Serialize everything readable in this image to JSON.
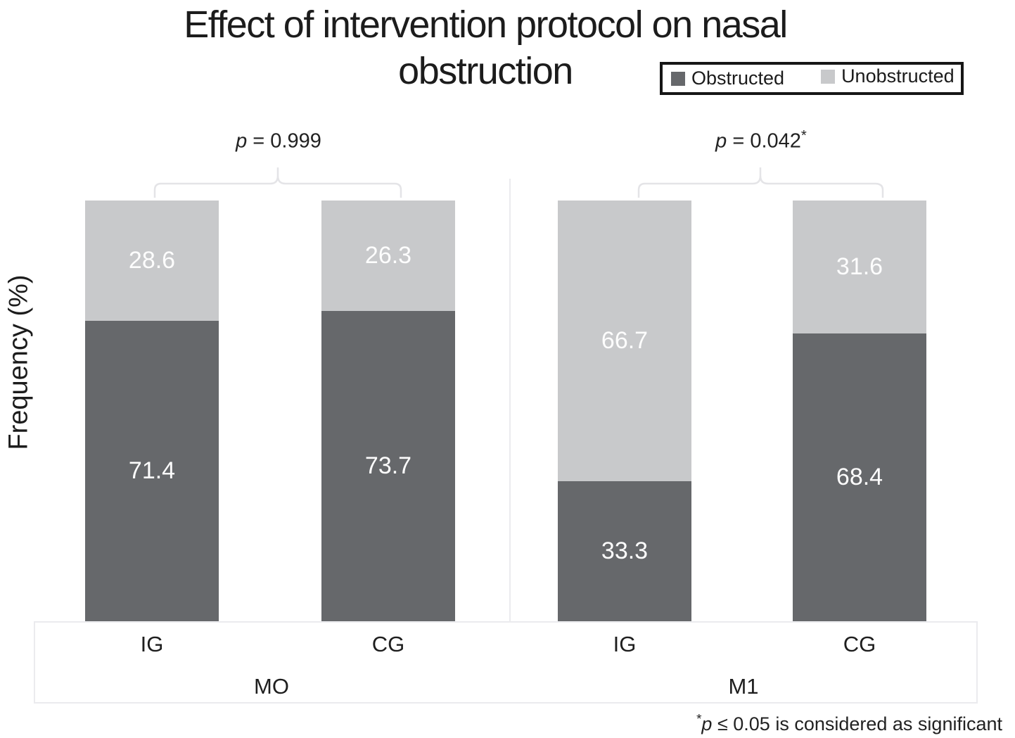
{
  "chart_data": {
    "type": "bar",
    "stacked": true,
    "units": "percent",
    "title": "Effect of intervention protocol on nasal obstruction",
    "ylabel": "Frequency (%)",
    "ylim": [
      0,
      100
    ],
    "grid": false,
    "legend_position": "top-right",
    "groups": [
      {
        "label": "MO",
        "categories": [
          "IG",
          "CG"
        ]
      },
      {
        "label": "M1",
        "categories": [
          "IG",
          "CG"
        ]
      }
    ],
    "series": [
      {
        "name": "Obstructed",
        "color": "#66686b",
        "values": [
          71.4,
          73.7,
          33.3,
          68.4
        ]
      },
      {
        "name": "Unobstructed",
        "color": "#c8c9cb",
        "values": [
          28.6,
          26.3,
          66.7,
          31.6
        ]
      }
    ],
    "significance": [
      {
        "p_symbol": "p",
        "value_text": " = 0.999",
        "star": ""
      },
      {
        "p_symbol": "p",
        "value_text": " = 0.042",
        "star": "*"
      }
    ]
  },
  "footnote": {
    "star": "*",
    "p_symbol": "p",
    "text": " ≤ 0.05 is considered as significant"
  }
}
